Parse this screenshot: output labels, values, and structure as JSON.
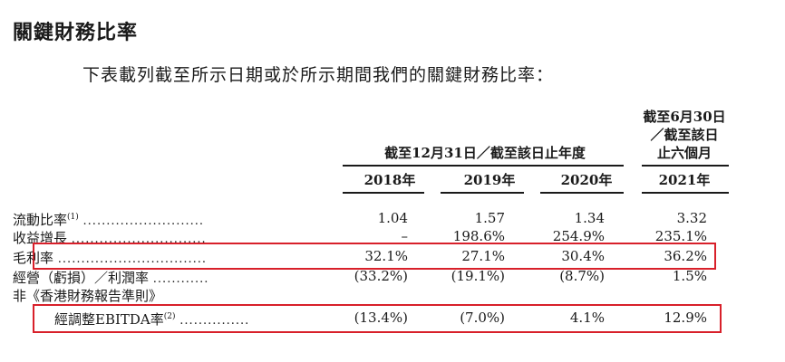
{
  "title": "關鍵財務比率",
  "intro": "下表載列截至所示日期或於所示期間我們的關鍵財務比率：",
  "header": {
    "group_label": "截至12月31日／截至該日止年度",
    "h2021_line1": "截至6月30日",
    "h2021_line2": "／截至該日",
    "h2021_line3": "止六個月",
    "years": [
      "2018年",
      "2019年",
      "2020年",
      "2021年"
    ]
  },
  "rows": [
    {
      "label": "流動比率",
      "sup": "(1)",
      "dots": "..........................",
      "values": [
        "1.04",
        "1.57",
        "1.34",
        "3.32"
      ]
    },
    {
      "label": "收益增長",
      "sup": "",
      "dots": ".............................",
      "values": [
        "–",
        "198.6%",
        "254.9%",
        "235.1%"
      ]
    },
    {
      "label": "毛利率",
      "sup": "",
      "dots": "................................",
      "values": [
        "32.1%",
        "27.1%",
        "30.4%",
        "36.2%"
      ]
    },
    {
      "label": "經營（虧損）／利潤率",
      "sup": "",
      "dots": "............",
      "values": [
        "(33.2%)",
        "(19.1%)",
        "(8.7%)",
        "1.5%"
      ]
    },
    {
      "label": "非《香港財務報告準則》",
      "sup": "",
      "dots": "",
      "values": [
        "",
        "",
        "",
        ""
      ]
    },
    {
      "label": "經調整EBITDA率",
      "sup": "(2)",
      "dots": "...............",
      "values": [
        "(13.4%)",
        "(7.0%)",
        "4.1%",
        "12.9%"
      ]
    }
  ],
  "highlight_color": "#d8202a"
}
